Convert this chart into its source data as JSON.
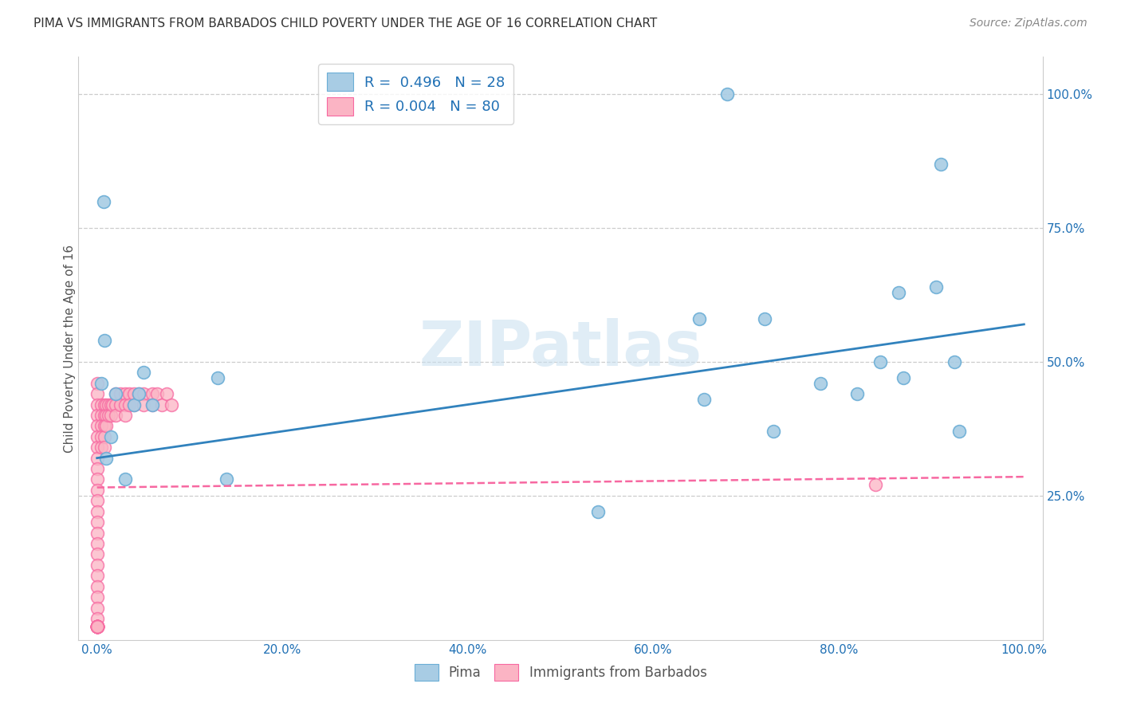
{
  "title": "PIMA VS IMMIGRANTS FROM BARBADOS CHILD POVERTY UNDER THE AGE OF 16 CORRELATION CHART",
  "source": "Source: ZipAtlas.com",
  "ylabel": "Child Poverty Under the Age of 16",
  "pima_color": "#a8cce4",
  "pima_edge_color": "#6baed6",
  "barbados_color": "#fbb4c4",
  "barbados_edge_color": "#f768a1",
  "pima_line_color": "#3182bd",
  "barbados_line_color": "#f768a1",
  "legend_label_pima": "R =  0.496   N = 28",
  "legend_label_barbados": "R = 0.004   N = 80",
  "watermark": "ZIPatlas",
  "pima_x": [
    0.005,
    0.01,
    0.015,
    0.02,
    0.03,
    0.04,
    0.045,
    0.05,
    0.06,
    0.007,
    0.008,
    0.13,
    0.14,
    0.54,
    0.65,
    0.68,
    0.72,
    0.73,
    0.78,
    0.82,
    0.845,
    0.865,
    0.87,
    0.905,
    0.91,
    0.925,
    0.93,
    0.655
  ],
  "pima_y": [
    0.46,
    0.32,
    0.36,
    0.44,
    0.28,
    0.42,
    0.44,
    0.48,
    0.42,
    0.8,
    0.54,
    0.47,
    0.28,
    0.22,
    0.58,
    1.0,
    0.58,
    0.37,
    0.46,
    0.44,
    0.5,
    0.63,
    0.47,
    0.64,
    0.87,
    0.5,
    0.37,
    0.43
  ],
  "barbados_x": [
    0.0,
    0.0,
    0.0,
    0.0,
    0.0,
    0.0,
    0.0,
    0.0,
    0.0,
    0.0,
    0.0,
    0.0,
    0.0,
    0.0,
    0.0,
    0.0,
    0.0,
    0.0,
    0.0,
    0.0,
    0.0,
    0.0,
    0.0,
    0.0,
    0.0,
    0.0,
    0.0,
    0.0,
    0.0,
    0.0,
    0.0,
    0.0,
    0.0,
    0.0,
    0.0,
    0.0,
    0.0,
    0.0,
    0.0,
    0.0,
    0.005,
    0.005,
    0.005,
    0.005,
    0.005,
    0.008,
    0.008,
    0.008,
    0.008,
    0.008,
    0.01,
    0.01,
    0.01,
    0.012,
    0.012,
    0.015,
    0.015,
    0.017,
    0.02,
    0.02,
    0.02,
    0.025,
    0.025,
    0.03,
    0.03,
    0.03,
    0.035,
    0.035,
    0.04,
    0.04,
    0.045,
    0.05,
    0.05,
    0.06,
    0.06,
    0.065,
    0.07,
    0.075,
    0.08,
    0.84
  ],
  "barbados_y": [
    0.46,
    0.44,
    0.42,
    0.4,
    0.38,
    0.36,
    0.34,
    0.32,
    0.3,
    0.28,
    0.26,
    0.24,
    0.22,
    0.2,
    0.18,
    0.16,
    0.14,
    0.12,
    0.1,
    0.08,
    0.06,
    0.04,
    0.02,
    0.005,
    0.005,
    0.005,
    0.005,
    0.005,
    0.005,
    0.005,
    0.005,
    0.005,
    0.005,
    0.005,
    0.005,
    0.005,
    0.005,
    0.005,
    0.005,
    0.005,
    0.42,
    0.4,
    0.38,
    0.36,
    0.34,
    0.42,
    0.4,
    0.38,
    0.36,
    0.34,
    0.42,
    0.4,
    0.38,
    0.42,
    0.4,
    0.42,
    0.4,
    0.42,
    0.44,
    0.42,
    0.4,
    0.44,
    0.42,
    0.44,
    0.42,
    0.4,
    0.44,
    0.42,
    0.44,
    0.42,
    0.44,
    0.44,
    0.42,
    0.44,
    0.42,
    0.44,
    0.42,
    0.44,
    0.42,
    0.27
  ],
  "xlim": [
    -0.02,
    1.02
  ],
  "ylim": [
    -0.02,
    1.07
  ],
  "xticks": [
    0.0,
    0.2,
    0.4,
    0.6,
    0.8,
    1.0
  ],
  "xtick_labels": [
    "0.0%",
    "20.0%",
    "40.0%",
    "60.0%",
    "80.0%",
    "100.0%"
  ],
  "ytick_right": [
    0.25,
    0.5,
    0.75,
    1.0
  ],
  "ytick_right_labels": [
    "25.0%",
    "50.0%",
    "75.0%",
    "100.0%"
  ],
  "pima_line_x": [
    0.0,
    1.0
  ],
  "pima_line_y_start": 0.32,
  "pima_line_y_end": 0.57,
  "barbados_line_y_start": 0.265,
  "barbados_line_y_end": 0.285
}
